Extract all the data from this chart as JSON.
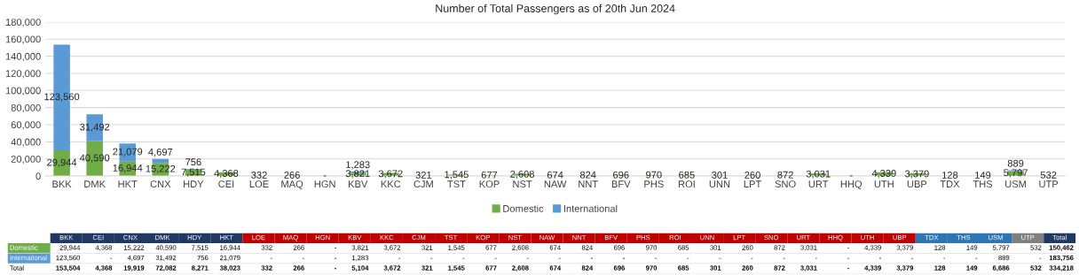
{
  "chart_data": [
    {
      "type": "bar",
      "title": "Number of Total Passengers as of 20th Jun 2024",
      "stacked": true,
      "categories": [
        "BKK",
        "DMK",
        "HKT",
        "CNX",
        "HDY",
        "CEI",
        "LOE",
        "MAQ",
        "HGN",
        "KBV",
        "KKC",
        "CJM",
        "TST",
        "KOP",
        "NST",
        "NAW",
        "NNT",
        "BFV",
        "PHS",
        "ROI",
        "UNN",
        "LPT",
        "SNO",
        "URT",
        "HHQ",
        "UTH",
        "UBP",
        "TDX",
        "THS",
        "USM",
        "UTP"
      ],
      "series": [
        {
          "name": "Domestic",
          "color": "#70ad47",
          "values": [
            29944,
            40590,
            16944,
            15222,
            7515,
            4368,
            332,
            266,
            0,
            3821,
            3672,
            321,
            1545,
            677,
            2608,
            674,
            824,
            696,
            970,
            685,
            301,
            260,
            872,
            3031,
            0,
            4339,
            3379,
            128,
            149,
            5797,
            532
          ],
          "value_labels": [
            "29,944",
            "40,590",
            "16,944",
            "15,222",
            "7,515",
            "4,368",
            "332",
            "266",
            "-",
            "3,821",
            "3,672",
            "321",
            "1,545",
            "677",
            "2,608",
            "674",
            "824",
            "696",
            "970",
            "685",
            "301",
            "260",
            "872",
            "3,031",
            "-",
            "4,339",
            "3,379",
            "128",
            "149",
            "5,797",
            "532"
          ]
        },
        {
          "name": "International",
          "color": "#5b9bd5",
          "values": [
            123560,
            31492,
            21079,
            4697,
            756,
            0,
            0,
            0,
            0,
            1283,
            0,
            0,
            0,
            0,
            0,
            0,
            0,
            0,
            0,
            0,
            0,
            0,
            0,
            0,
            0,
            0,
            0,
            0,
            0,
            889,
            0
          ],
          "value_labels": [
            "123,560",
            "31,492",
            "21,079",
            "4,697",
            "756",
            null,
            null,
            null,
            null,
            "1,283",
            null,
            null,
            null,
            null,
            null,
            null,
            null,
            null,
            null,
            null,
            null,
            null,
            null,
            null,
            null,
            null,
            null,
            null,
            null,
            "889",
            null
          ]
        }
      ],
      "ylim": [
        0,
        180000
      ],
      "yticks": [
        {
          "value": 0,
          "label": "0"
        },
        {
          "value": 20000,
          "label": "20,000"
        },
        {
          "value": 40000,
          "label": "40,000"
        },
        {
          "value": 60000,
          "label": "60,000"
        },
        {
          "value": 80000,
          "label": "80,000"
        },
        {
          "value": 100000,
          "label": "100,000"
        },
        {
          "value": 120000,
          "label": "120,000"
        },
        {
          "value": 140000,
          "label": "140,000"
        },
        {
          "value": 160000,
          "label": "160,000"
        },
        {
          "value": 180000,
          "label": "180,000"
        }
      ],
      "grid": "y",
      "legend": "bottom"
    },
    {
      "type": "other",
      "categories": [
        "BKK",
        "CEI",
        "CNX",
        "DMK",
        "HDY",
        "HKT",
        "LOE",
        "MAQ",
        "HGN",
        "KBV",
        "KKC",
        "CJM",
        "TST",
        "KOP",
        "NST",
        "NAW",
        "NNT",
        "BFV",
        "PHS",
        "ROI",
        "UNN",
        "LPT",
        "SNO",
        "URT",
        "HHQ",
        "UTH",
        "UBP",
        "TDX",
        "THS",
        "USM",
        "UTP",
        "Total"
      ],
      "colors": [
        "#1f3864",
        "#1f3864",
        "#1f3864",
        "#1f3864",
        "#1f3864",
        "#1f3864",
        "#c00000",
        "#c00000",
        "#c00000",
        "#c00000",
        "#c00000",
        "#c00000",
        "#c00000",
        "#c00000",
        "#c00000",
        "#c00000",
        "#c00000",
        "#c00000",
        "#c00000",
        "#c00000",
        "#c00000",
        "#c00000",
        "#c00000",
        "#c00000",
        "#c00000",
        "#c00000",
        "#c00000",
        "#2e75b6",
        "#2e75b6",
        "#2e75b6",
        "#808080",
        "#1f3864"
      ],
      "y_categories": [
        "Domestic",
        "International",
        "Total"
      ],
      "cell_labels": [
        [
          "29,944",
          "4,368",
          "15,222",
          "40,590",
          "7,515",
          "16,944",
          "332",
          "266",
          "-",
          "3,821",
          "3,672",
          "321",
          "1,545",
          "677",
          "2,608",
          "674",
          "824",
          "696",
          "970",
          "685",
          "301",
          "260",
          "872",
          "3,031",
          "-",
          "4,339",
          "3,379",
          "128",
          "149",
          "5,797",
          "532",
          "150,462"
        ],
        [
          "123,560",
          "-",
          "4,697",
          "31,492",
          "756",
          "21,079",
          "-",
          "-",
          "-",
          "1,283",
          "-",
          "-",
          "-",
          "-",
          "-",
          "-",
          "-",
          "-",
          "-",
          "-",
          "-",
          "-",
          "-",
          "-",
          "-",
          "-",
          "-",
          "-",
          "-",
          "889",
          "-",
          "183,756"
        ],
        [
          "153,504",
          "4,368",
          "19,919",
          "72,082",
          "8,271",
          "38,023",
          "332",
          "266",
          "-",
          "5,104",
          "3,672",
          "321",
          "1,545",
          "677",
          "2,608",
          "674",
          "824",
          "696",
          "970",
          "685",
          "301",
          "260",
          "872",
          "3,031",
          "-",
          "4,339",
          "3,379",
          "128",
          "149",
          "6,686",
          "532",
          "334,218"
        ]
      ]
    }
  ]
}
